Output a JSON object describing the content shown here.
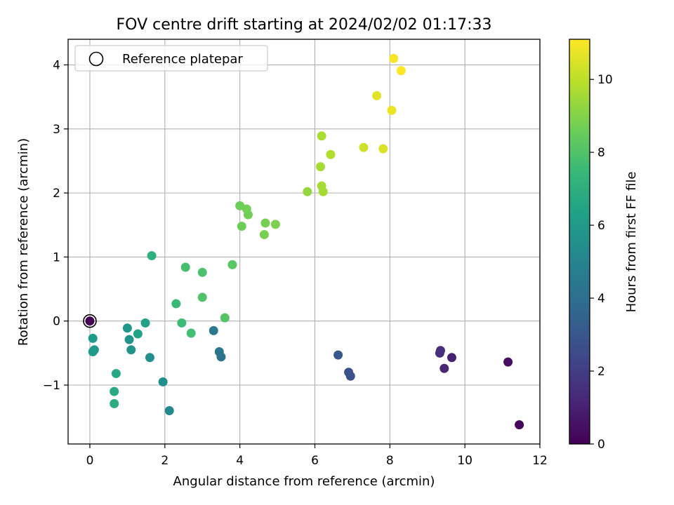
{
  "chart_data": {
    "type": "scatter",
    "title": "FOV centre drift starting at 2024/02/02 01:17:33",
    "xlabel": "Angular distance from reference (arcmin)",
    "ylabel": "Rotation from reference (arcmin)",
    "xlim": [
      -0.58,
      12.0
    ],
    "ylim": [
      -1.92,
      4.4
    ],
    "x_ticks": [
      0,
      2,
      4,
      6,
      8,
      10,
      12
    ],
    "x_tick_labels": [
      "0",
      "2",
      "4",
      "6",
      "8",
      "10",
      "12"
    ],
    "y_ticks": [
      -1,
      0,
      1,
      2,
      3,
      4
    ],
    "y_tick_labels": [
      "−1",
      "0",
      "1",
      "2",
      "3",
      "4"
    ],
    "grid": true,
    "legend": {
      "placement": "top-left",
      "entries": [
        {
          "label": "Reference platepar",
          "marker": "open-circle"
        }
      ]
    },
    "reference_point": {
      "x": 0,
      "y": 0
    },
    "colorbar": {
      "label": "Hours from first FF file",
      "colormap": "viridis",
      "range": [
        0,
        11.1
      ],
      "ticks": [
        0,
        2,
        4,
        6,
        8,
        10
      ],
      "tick_labels": [
        "0",
        "2",
        "4",
        "6",
        "8",
        "10"
      ]
    },
    "points": [
      {
        "x": 0.0,
        "y": 0.0,
        "c": 0.0
      },
      {
        "x": 11.45,
        "y": -1.62,
        "c": 0.2
      },
      {
        "x": 11.15,
        "y": -0.64,
        "c": 0.4
      },
      {
        "x": 9.65,
        "y": -0.57,
        "c": 1.0
      },
      {
        "x": 9.45,
        "y": -0.74,
        "c": 1.2
      },
      {
        "x": 9.35,
        "y": -0.46,
        "c": 1.4
      },
      {
        "x": 9.33,
        "y": -0.5,
        "c": 1.5
      },
      {
        "x": 6.95,
        "y": -0.86,
        "c": 2.7
      },
      {
        "x": 6.9,
        "y": -0.8,
        "c": 2.8
      },
      {
        "x": 6.62,
        "y": -0.53,
        "c": 3.0
      },
      {
        "x": 3.5,
        "y": -0.56,
        "c": 4.2
      },
      {
        "x": 3.45,
        "y": -0.48,
        "c": 4.3
      },
      {
        "x": 3.3,
        "y": -0.15,
        "c": 4.5
      },
      {
        "x": 2.12,
        "y": -1.4,
        "c": 5.2
      },
      {
        "x": 1.95,
        "y": -0.95,
        "c": 5.5
      },
      {
        "x": 1.6,
        "y": -0.57,
        "c": 5.6
      },
      {
        "x": 1.1,
        "y": -0.45,
        "c": 5.7
      },
      {
        "x": 1.05,
        "y": -0.29,
        "c": 5.7
      },
      {
        "x": 1.0,
        "y": -0.11,
        "c": 5.8
      },
      {
        "x": 0.12,
        "y": -0.45,
        "c": 5.9
      },
      {
        "x": 0.08,
        "y": -0.48,
        "c": 6.0
      },
      {
        "x": 0.08,
        "y": -0.27,
        "c": 6.0
      },
      {
        "x": 1.48,
        "y": -0.03,
        "c": 6.3
      },
      {
        "x": 1.28,
        "y": -0.2,
        "c": 6.4
      },
      {
        "x": 0.7,
        "y": -0.82,
        "c": 6.6
      },
      {
        "x": 0.65,
        "y": -1.1,
        "c": 6.7
      },
      {
        "x": 0.65,
        "y": -1.29,
        "c": 6.8
      },
      {
        "x": 1.65,
        "y": 1.02,
        "c": 7.0
      },
      {
        "x": 2.3,
        "y": 0.27,
        "c": 7.5
      },
      {
        "x": 2.45,
        "y": -0.03,
        "c": 7.6
      },
      {
        "x": 2.7,
        "y": -0.19,
        "c": 7.7
      },
      {
        "x": 2.55,
        "y": 0.84,
        "c": 7.8
      },
      {
        "x": 3.0,
        "y": 0.76,
        "c": 7.9
      },
      {
        "x": 3.0,
        "y": 0.37,
        "c": 8.0
      },
      {
        "x": 3.6,
        "y": 0.05,
        "c": 8.1
      },
      {
        "x": 3.8,
        "y": 0.88,
        "c": 8.2
      },
      {
        "x": 4.0,
        "y": 1.8,
        "c": 8.6
      },
      {
        "x": 4.05,
        "y": 1.48,
        "c": 8.6
      },
      {
        "x": 4.18,
        "y": 1.75,
        "c": 8.7
      },
      {
        "x": 4.22,
        "y": 1.66,
        "c": 8.7
      },
      {
        "x": 4.65,
        "y": 1.35,
        "c": 8.8
      },
      {
        "x": 4.68,
        "y": 1.53,
        "c": 8.8
      },
      {
        "x": 4.95,
        "y": 1.51,
        "c": 8.9
      },
      {
        "x": 5.8,
        "y": 2.02,
        "c": 9.3
      },
      {
        "x": 6.15,
        "y": 2.41,
        "c": 9.6
      },
      {
        "x": 6.18,
        "y": 2.11,
        "c": 9.6
      },
      {
        "x": 6.22,
        "y": 2.02,
        "c": 9.6
      },
      {
        "x": 6.18,
        "y": 2.89,
        "c": 9.7
      },
      {
        "x": 6.42,
        "y": 2.6,
        "c": 9.8
      },
      {
        "x": 7.3,
        "y": 2.71,
        "c": 10.3
      },
      {
        "x": 7.82,
        "y": 2.69,
        "c": 10.5
      },
      {
        "x": 7.65,
        "y": 3.52,
        "c": 10.6
      },
      {
        "x": 8.05,
        "y": 3.29,
        "c": 10.8
      },
      {
        "x": 8.1,
        "y": 4.1,
        "c": 11.0
      },
      {
        "x": 8.3,
        "y": 3.91,
        "c": 11.1
      }
    ]
  },
  "colors": {
    "axis": "#000000",
    "grid": "#b0b0b0",
    "legend_border": "#cccccc",
    "viridis_stops": [
      "#440154",
      "#482878",
      "#3e4a89",
      "#31688e",
      "#26828e",
      "#1f9e89",
      "#35b779",
      "#6ece58",
      "#b5de2b",
      "#fde725"
    ]
  }
}
